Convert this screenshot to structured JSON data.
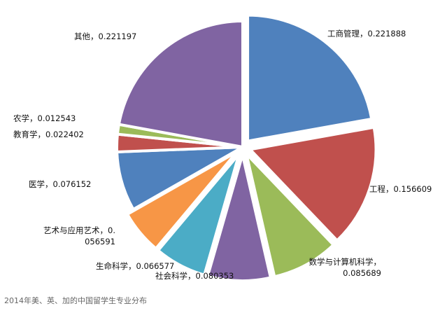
{
  "chart_data": {
    "type": "pie",
    "title": "",
    "caption": "2014年美、英、加的中国留学生专业分布",
    "slices": [
      {
        "label": "工商管理",
        "value": 0.221888,
        "value_text": "0.221888",
        "color": "#4F81BD",
        "exploded": true
      },
      {
        "label": "工程",
        "value": 0.156609,
        "value_text": "0.156609",
        "color": "#C0504D",
        "exploded": true
      },
      {
        "label": "数学与计算机科学",
        "value": 0.085689,
        "value_text": "0.085689",
        "color": "#9BBB59",
        "exploded": true
      },
      {
        "label": "社会科学",
        "value": 0.080353,
        "value_text": "0.080353",
        "color": "#8064A2",
        "exploded": true
      },
      {
        "label": "生命科学",
        "value": 0.066577,
        "value_text": "0.066577",
        "color": "#4BACC6",
        "exploded": true
      },
      {
        "label": "艺术与应用艺术",
        "value": 0.056591,
        "value_text": "0.056591",
        "color": "#F79646",
        "exploded": true
      },
      {
        "label": "医学",
        "value": 0.076152,
        "value_text": "0.076152",
        "color": "#4F81BD",
        "exploded": false
      },
      {
        "label": "教育学",
        "value": 0.022402,
        "value_text": "0.022402",
        "color": "#C0504D",
        "exploded": false
      },
      {
        "label": "农学",
        "value": 0.012543,
        "value_text": "0.012543",
        "color": "#9BBB59",
        "exploded": false
      },
      {
        "label": "其他",
        "value": 0.221197,
        "value_text": "0.221197",
        "color": "#8064A2",
        "exploded": false
      }
    ],
    "legend": "none",
    "start_position": "12 o'clock, clockwise"
  }
}
